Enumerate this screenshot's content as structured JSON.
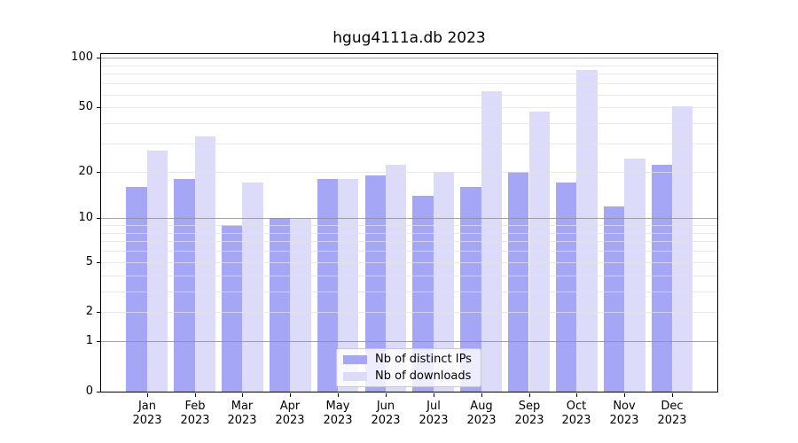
{
  "chart_data": {
    "type": "bar",
    "title": "hgug4111a.db 2023",
    "xlabel": "",
    "ylabel": "",
    "yscale": "log1p",
    "ylim": [
      0,
      100
    ],
    "y_ticks": [
      {
        "value": 0,
        "label": "0"
      },
      {
        "value": 1,
        "label": "1"
      },
      {
        "value": 2,
        "label": "2"
      },
      {
        "value": 5,
        "label": "5"
      },
      {
        "value": 10,
        "label": "10"
      },
      {
        "value": 20,
        "label": "20"
      },
      {
        "value": 50,
        "label": "50"
      },
      {
        "value": 100,
        "label": "100"
      }
    ],
    "grid": {
      "major_lines": [
        1,
        10,
        100
      ],
      "minor_lines": [
        2,
        3,
        4,
        5,
        6,
        7,
        8,
        9,
        20,
        30,
        40,
        50,
        60,
        70,
        80,
        90
      ]
    },
    "categories": [
      "Jan 2023",
      "Feb 2023",
      "Mar 2023",
      "Apr 2023",
      "May 2023",
      "Jun 2023",
      "Jul 2023",
      "Aug 2023",
      "Sep 2023",
      "Oct 2023",
      "Nov 2023",
      "Dec 2023"
    ],
    "series": [
      {
        "name": "Nb of distinct IPs",
        "color": "#a6a6f7",
        "values": [
          16,
          18,
          9,
          10,
          18,
          19,
          14,
          16,
          20,
          17,
          12,
          22
        ]
      },
      {
        "name": "Nb of downloads",
        "color": "#dcdcfa",
        "values": [
          27,
          33,
          17,
          10,
          18,
          22,
          20,
          63,
          47,
          85,
          24,
          51
        ]
      }
    ],
    "legend": {
      "position": "lower-center",
      "labels": [
        "Nb of distinct IPs",
        "Nb of downloads"
      ]
    }
  }
}
